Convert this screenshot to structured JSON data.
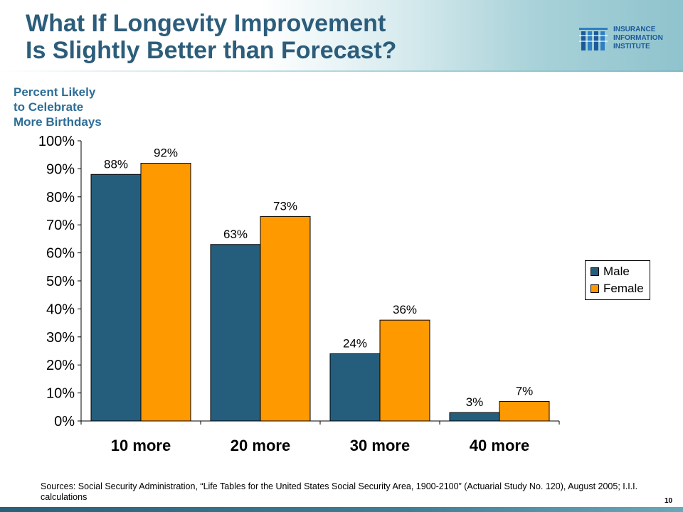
{
  "header": {
    "title_line1": "What If Longevity Improvement",
    "title_line2": "Is Slightly Better than Forecast?"
  },
  "logo": {
    "line1": "INSURANCE",
    "line2": "INFORMATION",
    "line3": "INSTITUTE"
  },
  "subtitle": {
    "line1": "Percent Likely",
    "line2": "to Celebrate",
    "line3": "More Birthdays"
  },
  "colors": {
    "male": "#255e7c",
    "female": "#ff9900",
    "title": "#2c5d7a",
    "subtitle": "#2e6d96"
  },
  "chart_data": {
    "type": "bar",
    "categories": [
      "10 more",
      "20 more",
      "30 more",
      "40 more"
    ],
    "series": [
      {
        "name": "Male",
        "values": [
          88,
          63,
          24,
          3
        ],
        "labels": [
          "88%",
          "63%",
          "24%",
          "3%"
        ]
      },
      {
        "name": "Female",
        "values": [
          92,
          73,
          36,
          7
        ],
        "labels": [
          "92%",
          "73%",
          "36%",
          "7%"
        ]
      }
    ],
    "ylim": [
      0,
      100
    ],
    "yticks": [
      "0%",
      "10%",
      "20%",
      "30%",
      "40%",
      "50%",
      "60%",
      "70%",
      "80%",
      "90%",
      "100%"
    ],
    "legend": "right",
    "grid": false
  },
  "sources": "Sources: Social Security Administration, “Life Tables for the United States Social Security Area, 1900-2100” (Actuarial Study No. 120), August 2005; I.I.I. calculations",
  "page_number": "10"
}
